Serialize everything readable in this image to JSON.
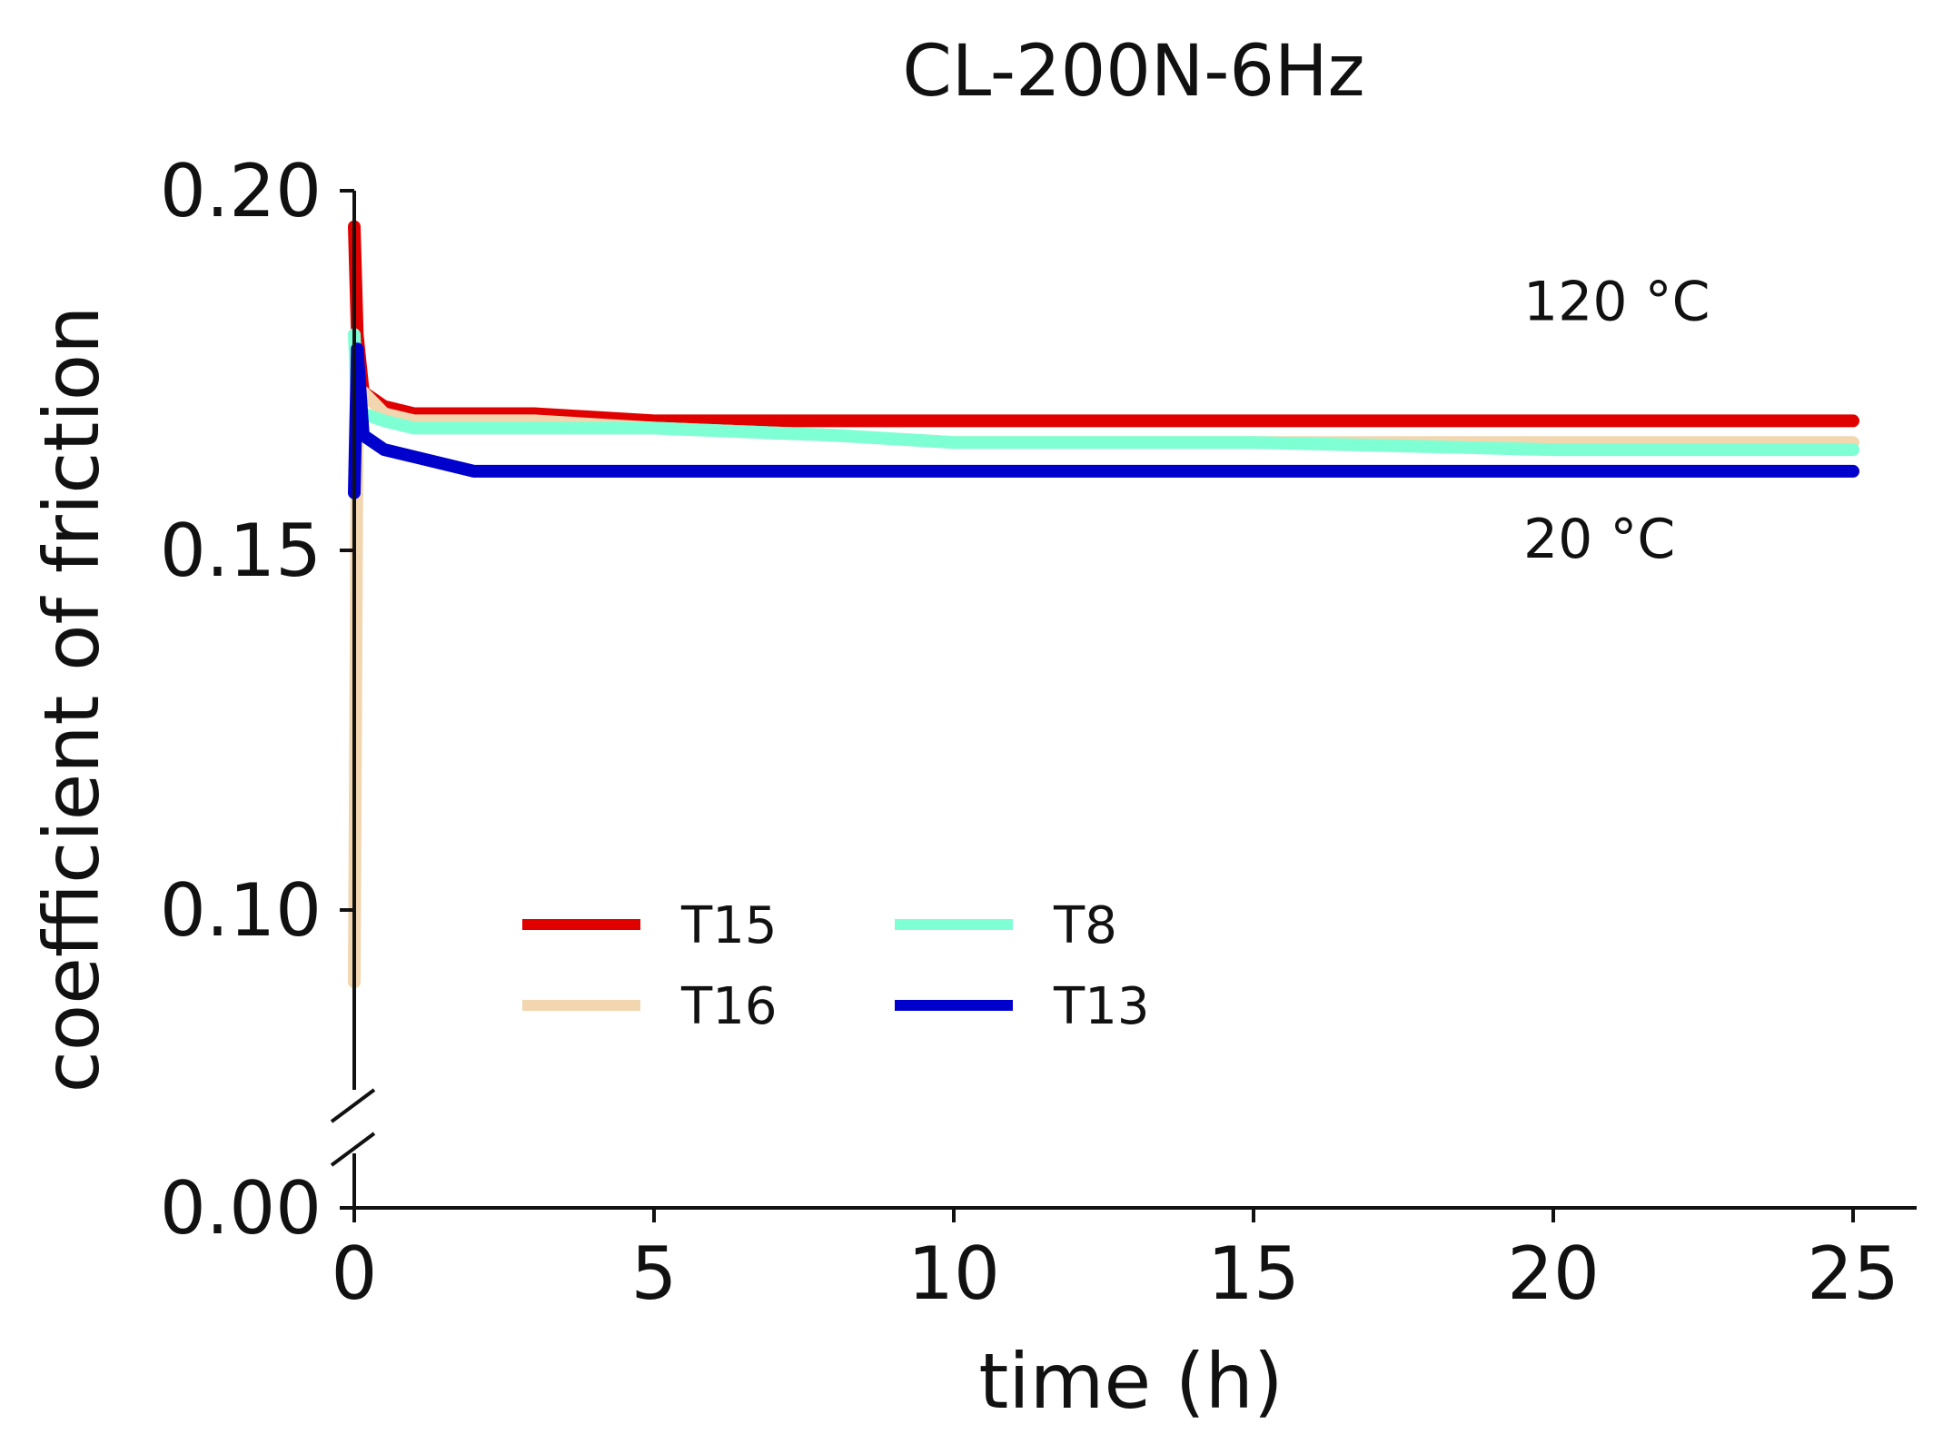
{
  "chart_data": {
    "type": "line",
    "title": "CL-200N-6Hz",
    "xlabel": "time (h)",
    "ylabel": "coefficient of friction",
    "xlim": [
      0,
      25
    ],
    "ylim_broken": {
      "lower": [
        0.0,
        0.0
      ],
      "upper": [
        0.075,
        0.2
      ]
    },
    "xticks": [
      0,
      5,
      10,
      15,
      20,
      25
    ],
    "xtick_labels": [
      "0",
      "5",
      "10",
      "15",
      "20",
      "25"
    ],
    "yticks": [
      0.0,
      0.1,
      0.15,
      0.2
    ],
    "ytick_labels": [
      "0.00",
      "0.10",
      "0.15",
      "0.20"
    ],
    "grid": false,
    "legend_position": "lower-left",
    "series": [
      {
        "name": "T15",
        "color": "#e00000",
        "x": [
          0,
          0.05,
          0.15,
          0.5,
          1,
          2,
          3,
          5,
          8,
          10,
          15,
          20,
          25
        ],
        "y": [
          0.195,
          0.18,
          0.172,
          0.17,
          0.169,
          0.169,
          0.169,
          0.168,
          0.168,
          0.168,
          0.168,
          0.168,
          0.168
        ]
      },
      {
        "name": "T16",
        "color": "#f2d6b0",
        "x": [
          0,
          0.05,
          0.15,
          0.5,
          1,
          2,
          3,
          5,
          8,
          10,
          15,
          20,
          25
        ],
        "y": [
          0.09,
          0.17,
          0.172,
          0.169,
          0.168,
          0.168,
          0.168,
          0.167,
          0.166,
          0.165,
          0.165,
          0.165,
          0.165
        ]
      },
      {
        "name": "T8",
        "color": "#7fffd4",
        "x": [
          0,
          0.05,
          0.15,
          0.5,
          1,
          2,
          3,
          5,
          8,
          10,
          15,
          20,
          25
        ],
        "y": [
          0.18,
          0.17,
          0.169,
          0.168,
          0.167,
          0.167,
          0.167,
          0.167,
          0.166,
          0.165,
          0.165,
          0.164,
          0.164
        ]
      },
      {
        "name": "T13",
        "color": "#0000cc",
        "x": [
          0,
          0.05,
          0.15,
          0.5,
          1,
          2,
          3,
          5,
          8,
          10,
          15,
          20,
          25
        ],
        "y": [
          0.158,
          0.178,
          0.166,
          0.164,
          0.163,
          0.161,
          0.161,
          0.161,
          0.161,
          0.161,
          0.161,
          0.161,
          0.161
        ]
      }
    ],
    "annotations": [
      {
        "text": "120 °C",
        "x": 19.5,
        "y": 0.182
      },
      {
        "text": "20 °C",
        "x": 19.5,
        "y": 0.149
      }
    ]
  }
}
